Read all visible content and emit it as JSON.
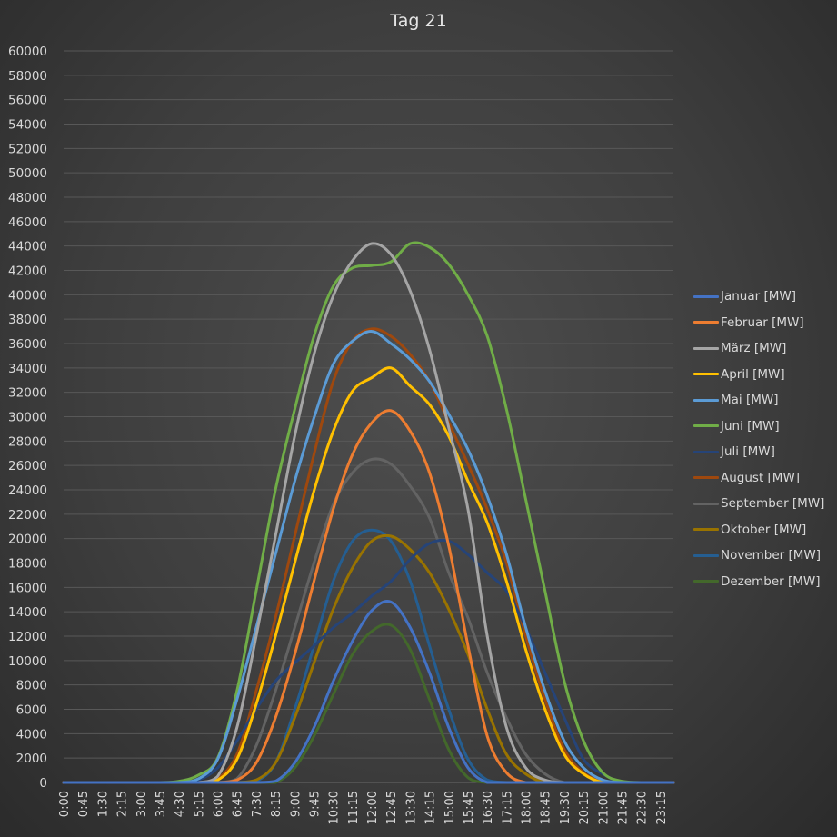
{
  "chart_data": {
    "type": "line",
    "title": "Tag 21",
    "xlabel": "",
    "ylabel": "",
    "ylim": [
      0,
      60000
    ],
    "y_ticks": [
      0,
      2000,
      4000,
      6000,
      8000,
      10000,
      12000,
      14000,
      16000,
      18000,
      20000,
      22000,
      24000,
      26000,
      28000,
      30000,
      32000,
      34000,
      36000,
      38000,
      40000,
      42000,
      44000,
      46000,
      48000,
      50000,
      52000,
      54000,
      56000,
      58000,
      60000
    ],
    "grid": true,
    "legend_position": "right",
    "x": [
      "0:00",
      "0:45",
      "1:30",
      "2:15",
      "3:00",
      "3:45",
      "4:30",
      "5:15",
      "6:00",
      "6:45",
      "7:30",
      "8:15",
      "9:00",
      "9:45",
      "10:30",
      "11:15",
      "12:00",
      "12:45",
      "13:30",
      "14:15",
      "15:00",
      "15:45",
      "16:30",
      "17:15",
      "18:00",
      "18:45",
      "19:30",
      "20:15",
      "21:00",
      "21:45",
      "22:30",
      "23:15"
    ],
    "x_range": [
      "0:00",
      "23:45"
    ],
    "series": [
      {
        "name": "Januar [MW]",
        "color": "#4472c4",
        "values": [
          0,
          0,
          0,
          0,
          0,
          0,
          0,
          0,
          0,
          0,
          0,
          100,
          1600,
          4500,
          8300,
          11600,
          14100,
          14800,
          12700,
          9000,
          4500,
          1200,
          0,
          0,
          0,
          0,
          0,
          0,
          0,
          0,
          0,
          0
        ]
      },
      {
        "name": "Februar [MW]",
        "color": "#ed7d31",
        "values": [
          0,
          0,
          0,
          0,
          0,
          0,
          0,
          0,
          0,
          200,
          1600,
          5300,
          10500,
          16500,
          22400,
          26900,
          29500,
          30500,
          28800,
          25400,
          19400,
          11200,
          3800,
          800,
          0,
          0,
          0,
          0,
          0,
          0,
          0,
          0
        ]
      },
      {
        "name": "März [MW]",
        "color": "#a5a5a5",
        "values": [
          0,
          0,
          0,
          0,
          0,
          0,
          0,
          0,
          500,
          4500,
          12000,
          20200,
          28400,
          35100,
          39900,
          42800,
          44200,
          43300,
          40300,
          35500,
          29100,
          22400,
          12000,
          4500,
          1200,
          200,
          0,
          0,
          0,
          0,
          0,
          0
        ]
      },
      {
        "name": "April [MW]",
        "color": "#ffc000",
        "values": [
          0,
          0,
          0,
          0,
          0,
          0,
          0,
          0,
          200,
          1900,
          6400,
          12000,
          18000,
          23900,
          28800,
          32100,
          33200,
          34000,
          32500,
          31000,
          28400,
          24700,
          21300,
          16500,
          10900,
          6000,
          2300,
          700,
          0,
          0,
          0,
          0
        ]
      },
      {
        "name": "Mai [MW]",
        "color": "#5b9bd5",
        "values": [
          0,
          0,
          0,
          0,
          0,
          0,
          0,
          300,
          1900,
          6800,
          12700,
          18700,
          24700,
          29900,
          34300,
          36200,
          37000,
          36000,
          34700,
          32900,
          30200,
          27300,
          23500,
          18700,
          12700,
          7500,
          3400,
          1200,
          200,
          0,
          0,
          0
        ]
      },
      {
        "name": "Juni [MW]",
        "color": "#70ad47",
        "values": [
          0,
          0,
          0,
          0,
          0,
          0,
          100,
          600,
          2000,
          7500,
          15700,
          24000,
          30600,
          36600,
          40700,
          42200,
          42400,
          42700,
          44200,
          43900,
          42500,
          40000,
          36600,
          30600,
          23200,
          15700,
          8300,
          3400,
          800,
          100,
          0,
          0
        ]
      },
      {
        "name": "Juli [MW]",
        "color": "#264478",
        "values": [
          0,
          0,
          0,
          0,
          0,
          0,
          0,
          200,
          1200,
          3400,
          6000,
          8300,
          9800,
          11200,
          12700,
          13900,
          15300,
          16500,
          18300,
          19600,
          19800,
          18700,
          17200,
          15700,
          12700,
          9000,
          5300,
          1900,
          700,
          0,
          0,
          0
        ]
      },
      {
        "name": "August [MW]",
        "color": "#9e480e",
        "values": [
          0,
          0,
          0,
          0,
          0,
          0,
          0,
          0,
          300,
          2300,
          7500,
          13500,
          20200,
          26900,
          32900,
          36200,
          37200,
          36600,
          35100,
          32900,
          29500,
          26100,
          22400,
          18000,
          12000,
          6800,
          2700,
          800,
          100,
          0,
          0,
          0
        ]
      },
      {
        "name": "September [MW]",
        "color": "#636363",
        "values": [
          0,
          0,
          0,
          0,
          0,
          0,
          0,
          0,
          0,
          300,
          3000,
          7500,
          12700,
          18000,
          22800,
          25400,
          26500,
          26100,
          24300,
          21700,
          17200,
          13500,
          9000,
          5300,
          2300,
          700,
          0,
          0,
          0,
          0,
          0,
          0
        ]
      },
      {
        "name": "Oktober [MW]",
        "color": "#997300",
        "values": [
          0,
          0,
          0,
          0,
          0,
          0,
          0,
          0,
          0,
          0,
          200,
          1600,
          5300,
          9800,
          14200,
          17600,
          19800,
          20200,
          19100,
          17200,
          14200,
          10500,
          6000,
          2300,
          700,
          0,
          0,
          0,
          0,
          0,
          0,
          0
        ]
      },
      {
        "name": "November [MW]",
        "color": "#255e91",
        "values": [
          0,
          0,
          0,
          0,
          0,
          0,
          0,
          0,
          0,
          0,
          100,
          1600,
          6000,
          11200,
          16500,
          19800,
          20700,
          19800,
          16500,
          11200,
          6000,
          1900,
          200,
          0,
          0,
          0,
          0,
          0,
          0,
          0,
          0,
          0
        ]
      },
      {
        "name": "Dezember [MW]",
        "color": "#43682b",
        "values": [
          0,
          0,
          0,
          0,
          0,
          0,
          0,
          0,
          0,
          0,
          0,
          0,
          1200,
          3800,
          7200,
          10500,
          12400,
          12900,
          10900,
          6800,
          2700,
          400,
          0,
          0,
          0,
          0,
          0,
          0,
          0,
          0,
          0,
          0
        ]
      }
    ]
  }
}
